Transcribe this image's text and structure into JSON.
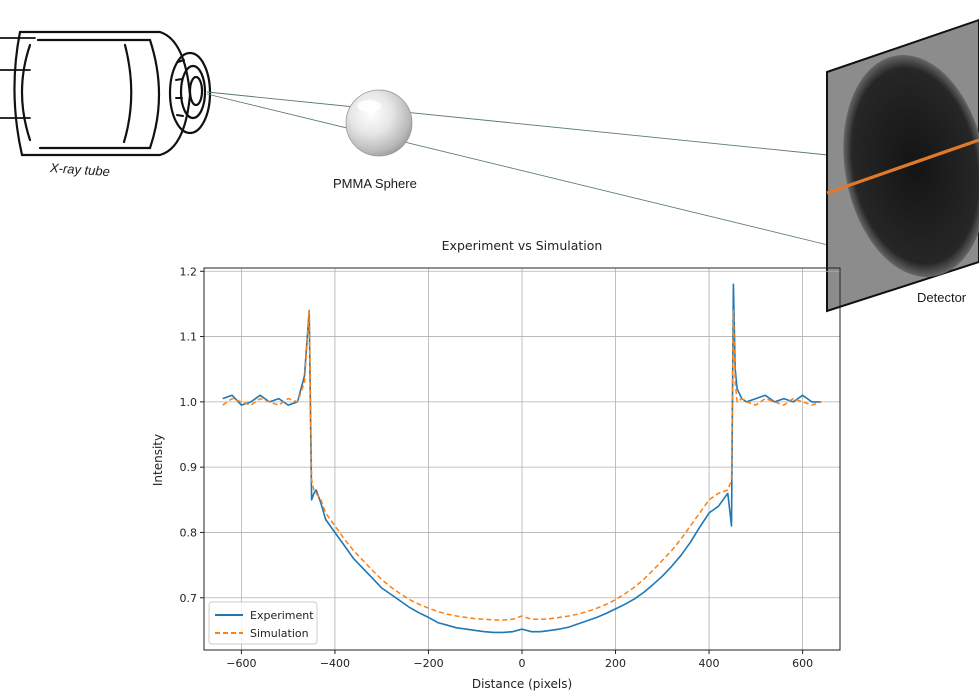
{
  "diagram": {
    "source_label": "X-ray tube",
    "object_label": "PMMA Sphere",
    "detector_label": "Detector"
  },
  "colors": {
    "experiment": "#1f77b4",
    "simulation": "#ff7f0e",
    "beam": "#5a7a6c",
    "detector_profile_line": "#e07a2a"
  },
  "chart_data": {
    "type": "line",
    "title": "Experiment vs Simulation",
    "xlabel": "Distance (pixels)",
    "ylabel": "Intensity",
    "xlim": [
      -680,
      680
    ],
    "ylim": [
      0.62,
      1.205
    ],
    "xticks": [
      -600,
      -400,
      -200,
      0,
      200,
      400,
      600
    ],
    "xtick_labels": [
      "−600",
      "−400",
      "−200",
      "0",
      "200",
      "400",
      "600"
    ],
    "yticks": [
      0.7,
      0.8,
      0.9,
      1.0,
      1.1,
      1.2
    ],
    "ytick_labels": [
      "0.7",
      "0.8",
      "0.9",
      "1.0",
      "1.1",
      "1.2"
    ],
    "grid": true,
    "legend_position": "lower-left",
    "x": [
      -640,
      -620,
      -600,
      -580,
      -560,
      -540,
      -520,
      -500,
      -480,
      -465,
      -455,
      -450,
      -445,
      -440,
      -430,
      -420,
      -400,
      -380,
      -360,
      -340,
      -320,
      -300,
      -280,
      -260,
      -240,
      -220,
      -200,
      -180,
      -160,
      -140,
      -120,
      -100,
      -80,
      -60,
      -40,
      -20,
      0,
      20,
      40,
      60,
      80,
      100,
      120,
      140,
      160,
      180,
      200,
      220,
      240,
      260,
      280,
      300,
      320,
      340,
      360,
      380,
      400,
      420,
      440,
      448,
      452,
      456,
      460,
      470,
      480,
      500,
      520,
      540,
      560,
      580,
      600,
      620,
      640
    ],
    "series": [
      {
        "name": "Experiment",
        "style": "solid",
        "values": [
          1.005,
          1.01,
          0.995,
          1.0,
          1.01,
          1.0,
          1.005,
          0.995,
          1.0,
          1.04,
          1.14,
          0.85,
          0.86,
          0.865,
          0.845,
          0.82,
          0.8,
          0.78,
          0.76,
          0.745,
          0.73,
          0.715,
          0.705,
          0.695,
          0.685,
          0.677,
          0.67,
          0.662,
          0.658,
          0.654,
          0.652,
          0.65,
          0.648,
          0.647,
          0.647,
          0.648,
          0.652,
          0.648,
          0.648,
          0.65,
          0.652,
          0.655,
          0.66,
          0.665,
          0.67,
          0.676,
          0.683,
          0.69,
          0.698,
          0.708,
          0.72,
          0.733,
          0.748,
          0.765,
          0.785,
          0.808,
          0.83,
          0.84,
          0.86,
          0.81,
          1.18,
          1.05,
          1.02,
          1.005,
          1.0,
          1.005,
          1.01,
          1.0,
          1.005,
          1.0,
          1.01,
          1.0,
          1.0
        ]
      },
      {
        "name": "Simulation",
        "style": "dashed",
        "values": [
          0.995,
          1.005,
          1.0,
          0.995,
          1.005,
          1.0,
          0.995,
          1.005,
          1.0,
          1.03,
          1.14,
          0.88,
          0.865,
          0.86,
          0.85,
          0.83,
          0.81,
          0.79,
          0.772,
          0.757,
          0.742,
          0.728,
          0.716,
          0.706,
          0.697,
          0.69,
          0.684,
          0.679,
          0.675,
          0.672,
          0.67,
          0.668,
          0.667,
          0.666,
          0.666,
          0.667,
          0.672,
          0.667,
          0.667,
          0.668,
          0.67,
          0.672,
          0.675,
          0.679,
          0.684,
          0.69,
          0.697,
          0.706,
          0.716,
          0.728,
          0.742,
          0.757,
          0.772,
          0.79,
          0.81,
          0.83,
          0.85,
          0.86,
          0.865,
          0.88,
          1.14,
          1.03,
          1.0,
          1.005,
          1.0,
          0.995,
          1.005,
          1.0,
          0.995,
          1.005,
          1.0,
          0.995,
          1.0
        ]
      }
    ]
  }
}
